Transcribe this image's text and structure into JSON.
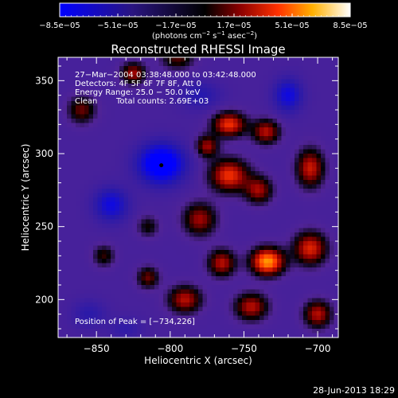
{
  "figure": {
    "title": "Reconstructed RHESSI Image",
    "footer_date": "28-Jun-2013 18:29"
  },
  "colorbar": {
    "tick_labels": [
      "−8.5e−05",
      "−5.1e−05",
      "−1.7e−05",
      "1.7e−05",
      "5.1e−05",
      "8.5e−05"
    ],
    "range": [
      -8.5e-05,
      8.5e-05
    ],
    "unit_parts": [
      "(photons cm",
      "−2",
      " s",
      "−1",
      " asec",
      "−2",
      ")"
    ]
  },
  "annotations": {
    "time_range": "27−Mar−2004 03:38:48.000 to 03:42:48.000",
    "detectors": "Detectors: 4F 5F 6F 7F 8F, Att 0",
    "energy_range": "Energy Range: 25.0 − 50.0 keV",
    "clean_label": "Clean",
    "total_counts": "Total counts: 2.69E+03",
    "position_of_peak": "Position of Peak = [−734,226]"
  },
  "chart_data": {
    "type": "heatmap",
    "title": "Reconstructed RHESSI Image",
    "xlabel": "Heliocentric X (arcsec)",
    "ylabel": "Heliocentric Y (arcsec)",
    "xlim": [
      -876,
      -686
    ],
    "ylim": [
      174,
      366
    ],
    "x_ticks": [
      -850,
      -800,
      -750,
      -700
    ],
    "y_ticks": [
      200,
      250,
      300,
      350
    ],
    "x_tick_labels": [
      "−850",
      "−800",
      "−750",
      "−700"
    ],
    "y_tick_labels": [
      "200",
      "250",
      "300",
      "350"
    ],
    "colorbar_range": [
      -8.5e-05,
      8.5e-05
    ],
    "minimum_marker": [
      -806,
      292
    ],
    "peak_position": [
      -734,
      226
    ],
    "features": [
      {
        "x": -806,
        "y": 293,
        "rx": 16,
        "ry": 14,
        "amp": -1.0
      },
      {
        "x": -840,
        "y": 265,
        "rx": 12,
        "ry": 12,
        "amp": -0.55
      },
      {
        "x": -720,
        "y": 340,
        "rx": 10,
        "ry": 12,
        "amp": -0.55
      },
      {
        "x": -780,
        "y": 340,
        "rx": 15,
        "ry": 10,
        "amp": -0.3
      },
      {
        "x": -860,
        "y": 330,
        "rx": 10,
        "ry": 10,
        "amp": 0.45
      },
      {
        "x": -825,
        "y": 355,
        "rx": 9,
        "ry": 8,
        "amp": 0.55
      },
      {
        "x": -795,
        "y": 365,
        "rx": 12,
        "ry": 8,
        "amp": 0.4
      },
      {
        "x": -775,
        "y": 305,
        "rx": 8,
        "ry": 8,
        "amp": 0.55
      },
      {
        "x": -760,
        "y": 320,
        "rx": 12,
        "ry": 9,
        "amp": 0.75
      },
      {
        "x": -735,
        "y": 315,
        "rx": 10,
        "ry": 9,
        "amp": 0.6
      },
      {
        "x": -760,
        "y": 285,
        "rx": 14,
        "ry": 12,
        "amp": 0.75
      },
      {
        "x": -705,
        "y": 290,
        "rx": 10,
        "ry": 14,
        "amp": 0.65
      },
      {
        "x": -740,
        "y": 275,
        "rx": 10,
        "ry": 10,
        "amp": 0.55
      },
      {
        "x": -780,
        "y": 255,
        "rx": 12,
        "ry": 12,
        "amp": 0.55
      },
      {
        "x": -734,
        "y": 226,
        "rx": 12,
        "ry": 10,
        "amp": 1.0
      },
      {
        "x": -705,
        "y": 235,
        "rx": 12,
        "ry": 12,
        "amp": 0.7
      },
      {
        "x": -765,
        "y": 225,
        "rx": 10,
        "ry": 10,
        "amp": 0.6
      },
      {
        "x": -790,
        "y": 200,
        "rx": 12,
        "ry": 10,
        "amp": 0.6
      },
      {
        "x": -745,
        "y": 195,
        "rx": 12,
        "ry": 10,
        "amp": 0.6
      },
      {
        "x": -700,
        "y": 190,
        "rx": 10,
        "ry": 10,
        "amp": 0.6
      },
      {
        "x": -815,
        "y": 215,
        "rx": 8,
        "ry": 8,
        "amp": 0.45
      },
      {
        "x": -845,
        "y": 230,
        "rx": 8,
        "ry": 8,
        "amp": 0.35
      },
      {
        "x": -815,
        "y": 250,
        "rx": 8,
        "ry": 8,
        "amp": 0.3
      },
      {
        "x": -855,
        "y": 190,
        "rx": 12,
        "ry": 10,
        "amp": -0.25
      },
      {
        "x": -830,
        "y": 180,
        "rx": 12,
        "ry": 8,
        "amp": -0.2
      }
    ]
  }
}
